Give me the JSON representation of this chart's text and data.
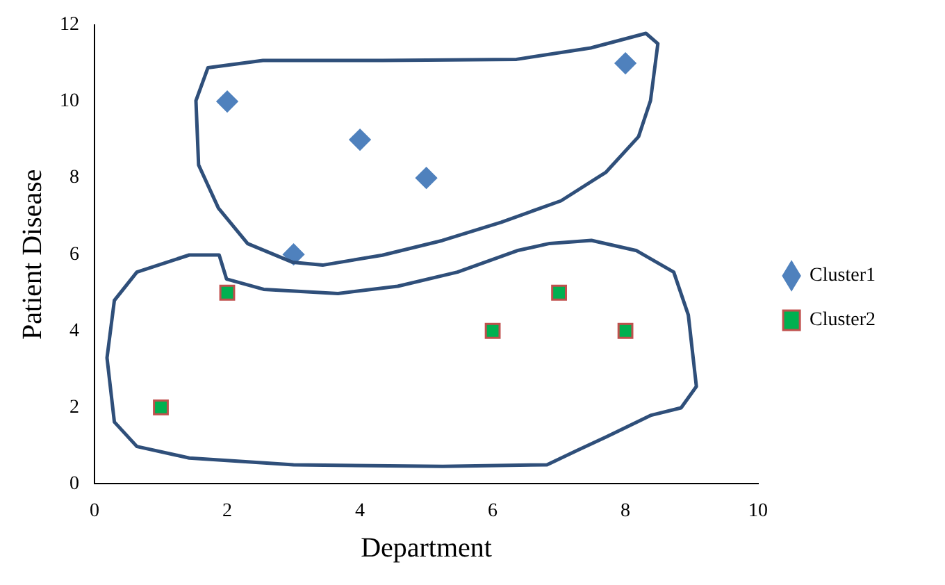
{
  "chart_data": {
    "type": "scatter",
    "xlabel": "Department",
    "ylabel": "Patient Disease",
    "xlim": [
      0,
      10
    ],
    "xticks": [
      0,
      2,
      4,
      6,
      8,
      10
    ],
    "ylim": [
      0,
      12
    ],
    "yticks": [
      0,
      2,
      4,
      6,
      8,
      10,
      12
    ],
    "grid": false,
    "legend": "right",
    "series": [
      {
        "name": "Cluster1",
        "color": "#4f81bd",
        "marker": "diamond",
        "x": [
          2,
          3,
          4,
          5,
          8
        ],
        "values": [
          10,
          6,
          9,
          8,
          11
        ]
      },
      {
        "name": "Cluster2",
        "color": "#00b050",
        "marker": "square",
        "x": [
          1,
          2,
          6,
          7,
          8
        ],
        "values": [
          2,
          5,
          4,
          5,
          4
        ]
      }
    ]
  }
}
